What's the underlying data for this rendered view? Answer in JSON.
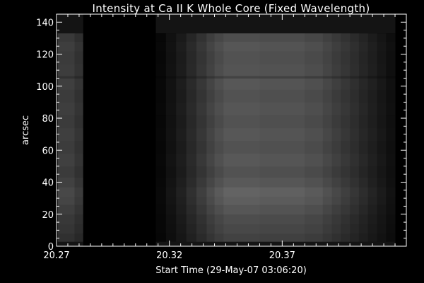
{
  "chart_data": {
    "type": "heatmap",
    "title": "Intensity at Ca II K Whole Core (Fixed Wavelength)",
    "xlabel": "Start Time (29-May-07 03:06:20)",
    "ylabel": "arcsec",
    "xlim": [
      20.27,
      20.425
    ],
    "ylim": [
      0,
      145
    ],
    "x_tick_labels": [
      "20.27",
      "20.32",
      "20.37"
    ],
    "x_ticks": [
      20.27,
      20.32,
      20.37
    ],
    "y_ticks": [
      0,
      20,
      40,
      60,
      80,
      100,
      120,
      140
    ],
    "data_range_y": [
      3,
      133
    ],
    "colormap": "grayscale",
    "columns": [
      {
        "x0": 20.2705,
        "x1": 20.278,
        "level": 0.24
      },
      {
        "x0": 20.278,
        "x1": 20.2818,
        "level": 0.2
      },
      {
        "x0": 20.2818,
        "x1": 20.314,
        "level": 0.0
      },
      {
        "x0": 20.314,
        "x1": 20.3185,
        "level": 0.03
      },
      {
        "x0": 20.3185,
        "x1": 20.323,
        "level": 0.07
      },
      {
        "x0": 20.323,
        "x1": 20.3275,
        "level": 0.11
      },
      {
        "x0": 20.3275,
        "x1": 20.332,
        "level": 0.16
      },
      {
        "x0": 20.332,
        "x1": 20.3365,
        "level": 0.21
      },
      {
        "x0": 20.3365,
        "x1": 20.34,
        "level": 0.26
      },
      {
        "x0": 20.34,
        "x1": 20.344,
        "level": 0.3
      },
      {
        "x0": 20.344,
        "x1": 20.36,
        "level": 0.33
      },
      {
        "x0": 20.36,
        "x1": 20.38,
        "level": 0.32
      },
      {
        "x0": 20.38,
        "x1": 20.388,
        "level": 0.3
      },
      {
        "x0": 20.388,
        "x1": 20.392,
        "level": 0.27
      },
      {
        "x0": 20.392,
        "x1": 20.396,
        "level": 0.24
      },
      {
        "x0": 20.396,
        "x1": 20.4,
        "level": 0.21
      },
      {
        "x0": 20.4,
        "x1": 20.404,
        "level": 0.18
      },
      {
        "x0": 20.404,
        "x1": 20.408,
        "level": 0.15
      },
      {
        "x0": 20.408,
        "x1": 20.412,
        "level": 0.12
      },
      {
        "x0": 20.412,
        "x1": 20.416,
        "level": 0.09
      },
      {
        "x0": 20.416,
        "x1": 20.42,
        "level": 0.06
      }
    ],
    "top_strip": {
      "y0": 133,
      "y1": 145,
      "level": 0.08
    },
    "bottom_strip": {
      "y0": 0,
      "y1": 3,
      "level": 0.08
    },
    "row_profile": [
      {
        "y0": 3,
        "y1": 8,
        "factor": 0.78
      },
      {
        "y0": 8,
        "y1": 14,
        "factor": 0.86
      },
      {
        "y0": 14,
        "y1": 20,
        "factor": 0.92
      },
      {
        "y0": 20,
        "y1": 26,
        "factor": 1.02
      },
      {
        "y0": 26,
        "y1": 31,
        "factor": 1.12
      },
      {
        "y0": 31,
        "y1": 37,
        "factor": 1.18
      },
      {
        "y0": 37,
        "y1": 43,
        "factor": 1.06
      },
      {
        "y0": 43,
        "y1": 50,
        "factor": 0.97
      },
      {
        "y0": 50,
        "y1": 58,
        "factor": 1.04
      },
      {
        "y0": 58,
        "y1": 66,
        "factor": 0.98
      },
      {
        "y0": 66,
        "y1": 74,
        "factor": 1.03
      },
      {
        "y0": 74,
        "y1": 82,
        "factor": 0.97
      },
      {
        "y0": 82,
        "y1": 90,
        "factor": 1.02
      },
      {
        "y0": 90,
        "y1": 98,
        "factor": 0.97
      },
      {
        "y0": 98,
        "y1": 105,
        "factor": 1.03
      },
      {
        "y0": 105,
        "y1": 106.5,
        "factor": 0.8
      },
      {
        "y0": 106.5,
        "y1": 114,
        "factor": 1.0
      },
      {
        "y0": 114,
        "y1": 122,
        "factor": 0.97
      },
      {
        "y0": 122,
        "y1": 128,
        "factor": 1.02
      },
      {
        "y0": 128,
        "y1": 133,
        "factor": 0.93
      }
    ]
  }
}
